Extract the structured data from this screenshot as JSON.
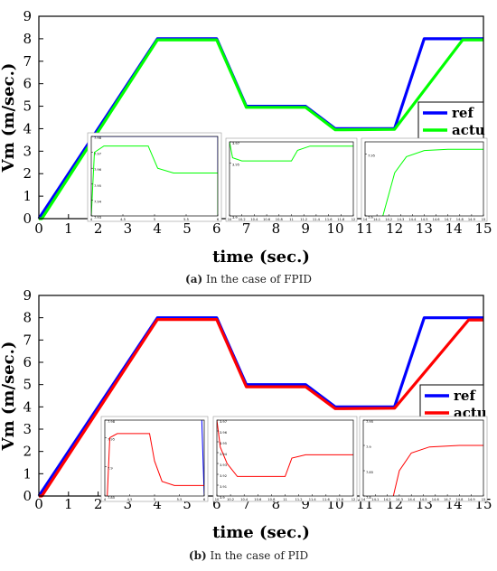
{
  "chart_data": [
    {
      "type": "line",
      "xlabel": "time (sec.)",
      "ylabel": "Vm (m/sec.)",
      "xlim": [
        0,
        15
      ],
      "ylim": [
        0,
        9
      ],
      "xticks": [
        "0",
        "1",
        "2",
        "3",
        "4",
        "5",
        "6",
        "7",
        "8",
        "9",
        "10",
        "11",
        "12",
        "13",
        "14",
        "15"
      ],
      "yticks": [
        "0",
        "1",
        "2",
        "3",
        "4",
        "5",
        "6",
        "7",
        "8",
        "9"
      ],
      "grid": false,
      "legend_position": "right",
      "series": [
        {
          "name": "ref",
          "color": "#0000ff",
          "x": [
            0,
            4,
            6,
            7,
            9,
            10,
            12,
            13,
            15
          ],
          "y": [
            0,
            8,
            8,
            5,
            5,
            4,
            4,
            8,
            8
          ]
        },
        {
          "name": "actu",
          "color": "#00ff00",
          "x": [
            0,
            0.1,
            4,
            6,
            7,
            9,
            10,
            12,
            14.3,
            15
          ],
          "y": [
            0,
            0,
            7.95,
            7.95,
            4.95,
            4.95,
            3.95,
            3.97,
            7.95,
            7.95
          ]
        }
      ],
      "insets": [
        {
          "xlim": [
            4,
            6
          ],
          "ylim": [
            7.93,
            7.98
          ],
          "xticks": [
            "4",
            "4.5",
            "5",
            "5.5",
            "6"
          ],
          "yticks": [
            "7.93",
            "7.94",
            "7.95",
            "7.96",
            "7.97",
            "7.98"
          ],
          "series": [
            {
              "name": "ref",
              "color": "#0000ff",
              "x": [
                4,
                6,
                6
              ],
              "y": [
                7.98,
                7.98,
                7.93
              ]
            },
            {
              "name": "actu",
              "color": "#00ff00",
              "x": [
                4,
                4.05,
                4.2,
                4.9,
                5.05,
                5.3,
                5.95,
                6,
                6
              ],
              "y": [
                7.93,
                7.97,
                7.974,
                7.974,
                7.96,
                7.957,
                7.957,
                7.957,
                7.93
              ]
            }
          ]
        },
        {
          "xlim": [
            10,
            12
          ],
          "ylim": [
            3.9,
            3.97
          ],
          "xticks": [
            "10",
            "10.2",
            "10.4",
            "10.6",
            "10.8",
            "11",
            "11.2",
            "11.4",
            "11.6",
            "11.8",
            "12"
          ],
          "yticks": [
            "3.9",
            "3.95",
            "3.97"
          ],
          "series": [
            {
              "name": "actu",
              "color": "#00ff00",
              "x": [
                10,
                10.05,
                10.2,
                11,
                11.1,
                11.3,
                12
              ],
              "y": [
                3.97,
                3.955,
                3.952,
                3.952,
                3.962,
                3.966,
                3.966
              ]
            }
          ]
        },
        {
          "xlim": [
            14,
            15
          ],
          "ylim": [
            7.9,
            7.96
          ],
          "xticks": [
            "14",
            "14.1",
            "14.2",
            "14.3",
            "14.4",
            "14.5",
            "14.6",
            "14.7",
            "14.8",
            "14.9",
            "15"
          ],
          "yticks": [
            "7.9",
            "7.95"
          ],
          "series": [
            {
              "name": "actu",
              "color": "#00ff00",
              "x": [
                14.15,
                14.25,
                14.35,
                14.5,
                14.7,
                15
              ],
              "y": [
                7.9,
                7.935,
                7.948,
                7.953,
                7.954,
                7.954
              ]
            }
          ]
        }
      ]
    },
    {
      "type": "line",
      "xlabel": "time (sec.)",
      "ylabel": "Vm (m/sec.)",
      "xlim": [
        0,
        15
      ],
      "ylim": [
        0,
        9
      ],
      "xticks": [
        "0",
        "1",
        "2",
        "3",
        "4",
        "5",
        "6",
        "7",
        "8",
        "9",
        "10",
        "11",
        "12",
        "13",
        "14",
        "15"
      ],
      "yticks": [
        "0",
        "1",
        "2",
        "3",
        "4",
        "5",
        "6",
        "7",
        "8",
        "9"
      ],
      "grid": false,
      "legend_position": "right",
      "series": [
        {
          "name": "ref",
          "color": "#0000ff",
          "x": [
            0,
            4,
            6,
            7,
            9,
            10,
            12,
            13,
            15
          ],
          "y": [
            0,
            8,
            8,
            5,
            5,
            4,
            4,
            8,
            8
          ]
        },
        {
          "name": "actu",
          "color": "#ff0000",
          "x": [
            0,
            0.1,
            4,
            6,
            7,
            9,
            10,
            12,
            14.5,
            15
          ],
          "y": [
            0,
            0,
            7.92,
            7.92,
            4.9,
            4.9,
            3.92,
            3.94,
            7.9,
            7.9
          ]
        }
      ],
      "insets": [
        {
          "xlim": [
            4,
            6
          ],
          "ylim": [
            7.85,
            7.98
          ],
          "xticks": [
            "4",
            "4.5",
            "5",
            "5.5",
            "6"
          ],
          "yticks": [
            "7.85",
            "7.9",
            "7.95",
            "7.98"
          ],
          "series": [
            {
              "name": "ref",
              "color": "#0000ff",
              "x": [
                5.95,
                6
              ],
              "y": [
                7.98,
                7.85
              ]
            },
            {
              "name": "actu",
              "color": "#ff0000",
              "x": [
                4.05,
                4.1,
                4.25,
                4.9,
                5.0,
                5.15,
                5.4,
                6
              ],
              "y": [
                7.85,
                7.95,
                7.957,
                7.957,
                7.91,
                7.875,
                7.868,
                7.868
              ]
            }
          ]
        },
        {
          "xlim": [
            10,
            12
          ],
          "ylim": [
            3.9,
            3.97
          ],
          "xticks": [
            "10",
            "10.2",
            "10.4",
            "10.6",
            "10.8",
            "11",
            "11.2",
            "11.4",
            "11.6",
            "11.8",
            "12"
          ],
          "yticks": [
            "3.9",
            "3.91",
            "3.92",
            "3.93",
            "3.94",
            "3.95",
            "3.96",
            "3.97"
          ],
          "series": [
            {
              "name": "actu",
              "color": "#ff0000",
              "x": [
                10,
                10.05,
                10.15,
                10.3,
                11,
                11.1,
                11.3,
                12
              ],
              "y": [
                3.97,
                3.945,
                3.93,
                3.918,
                3.918,
                3.935,
                3.938,
                3.938
              ]
            }
          ]
        },
        {
          "xlim": [
            14,
            15
          ],
          "ylim": [
            7.8,
            7.95
          ],
          "xticks": [
            "14",
            "14.1",
            "14.2",
            "14.3",
            "14.4",
            "14.5",
            "14.6",
            "14.7",
            "14.8",
            "14.9",
            "15"
          ],
          "yticks": [
            "7.8",
            "7.85",
            "7.9",
            "7.95"
          ],
          "series": [
            {
              "name": "actu",
              "color": "#ff0000",
              "x": [
                14.25,
                14.3,
                14.4,
                14.55,
                14.8,
                15
              ],
              "y": [
                7.8,
                7.85,
                7.885,
                7.897,
                7.9,
                7.9
              ]
            }
          ]
        }
      ]
    }
  ],
  "captions": [
    {
      "label": "(a)",
      "text": " In the case of FPID"
    },
    {
      "label": "(b)",
      "text": " In the case of PID"
    }
  ]
}
